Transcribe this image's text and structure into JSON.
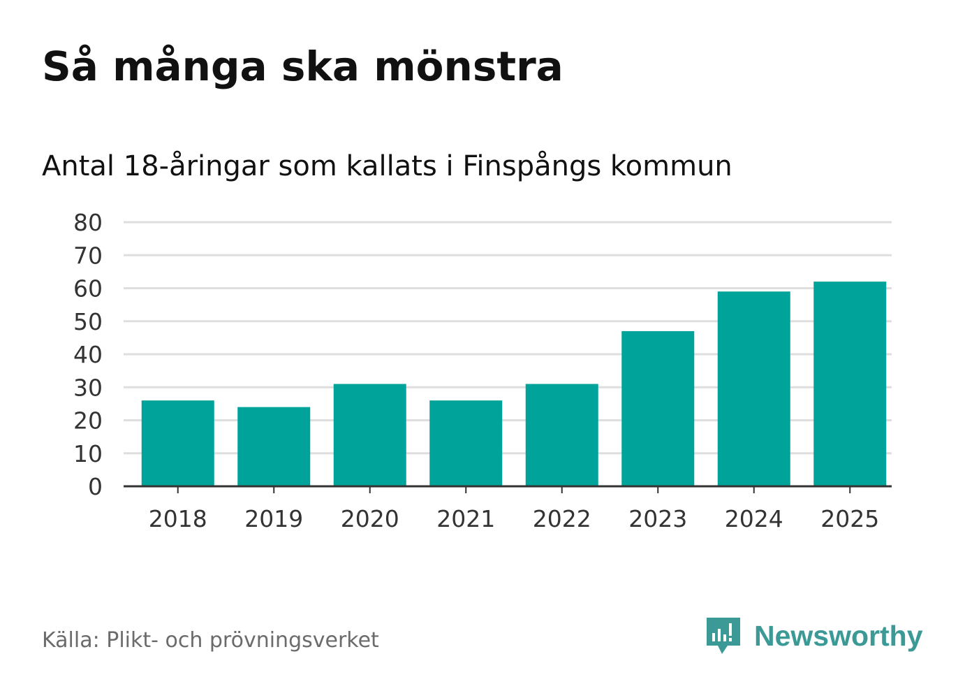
{
  "header": {
    "title": "Så många ska mönstra",
    "subtitle": "Antal 18-åringar som kallats i Finspångs kommun"
  },
  "footer": {
    "source": "Källa: Plikt- och prövningsverket",
    "brand": "Newsworthy",
    "brand_icon": "newsworthy-logo-icon"
  },
  "colors": {
    "bar": "#00a39a",
    "grid": "#dedede",
    "axis": "#333333",
    "brand": "#3b9a95"
  },
  "chart_data": {
    "type": "bar",
    "title": "Så många ska mönstra",
    "subtitle": "Antal 18-åringar som kallats i Finspångs kommun",
    "xlabel": "",
    "ylabel": "",
    "categories": [
      "2018",
      "2019",
      "2020",
      "2021",
      "2022",
      "2023",
      "2024",
      "2025"
    ],
    "values": [
      26,
      24,
      31,
      26,
      31,
      47,
      59,
      62
    ],
    "ylim": [
      0,
      80
    ],
    "yticks": [
      0,
      10,
      20,
      30,
      40,
      50,
      60,
      70,
      80
    ],
    "grid": true,
    "legend": "none"
  }
}
